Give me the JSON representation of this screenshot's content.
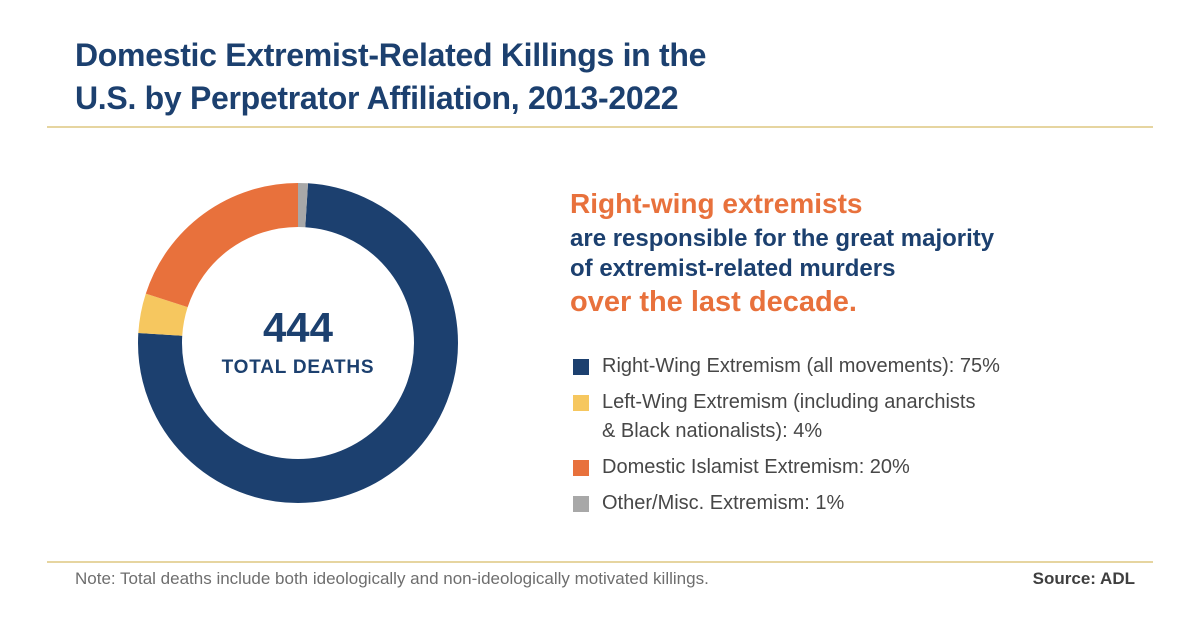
{
  "theme": {
    "navy": "#1C406F",
    "orange": "#E8713C",
    "yellow": "#F6C75F",
    "gray": "#A8A8A8",
    "divider_gold": "#E6D5A0",
    "legend_text": "#474747",
    "note_text": "#6E6E6E",
    "source_text": "#3F3F3F",
    "background": "#FFFFFF"
  },
  "header": {
    "title_lines": [
      "Domestic Extremist-Related Killings in the",
      "U.S. by Perpetrator Affiliation, 2013-2022"
    ]
  },
  "headline": {
    "accent_line1": "Right-wing extremists",
    "body_line1": "are responsible for the great majority",
    "body_line2": "of extremist-related murders",
    "accent_line2": "over the last decade."
  },
  "chart_data": {
    "type": "pie",
    "donut": true,
    "title": "Domestic Extremist-Related Killings in the U.S. by Perpetrator Affiliation, 2013-2022",
    "center_value": "444",
    "center_label": "TOTAL DEATHS",
    "rotation_deg": 3.6,
    "units": "percent",
    "legend_position": "right",
    "series": [
      {
        "name": "Right-Wing Extremism (all movements)",
        "value": 75,
        "color": "#1C406F",
        "legend_lines": [
          "Right-Wing Extremism (all movements): 75%"
        ]
      },
      {
        "name": "Left-Wing Extremism (including anarchists & Black nationalists)",
        "value": 4,
        "color": "#F6C75F",
        "legend_lines": [
          "Left-Wing Extremism (including anarchists",
          "& Black nationalists): 4%"
        ]
      },
      {
        "name": "Domestic Islamist Extremism",
        "value": 20,
        "color": "#E8713C",
        "legend_lines": [
          "Domestic Islamist Extremism: 20%"
        ]
      },
      {
        "name": "Other/Misc. Extremism",
        "value": 1,
        "color": "#A8A8A8",
        "legend_lines": [
          "Other/Misc. Extremism: 1%"
        ]
      }
    ]
  },
  "footer": {
    "note": "Note: Total deaths include both ideologically and non-ideologically motivated killings.",
    "source": "Source: ADL"
  }
}
